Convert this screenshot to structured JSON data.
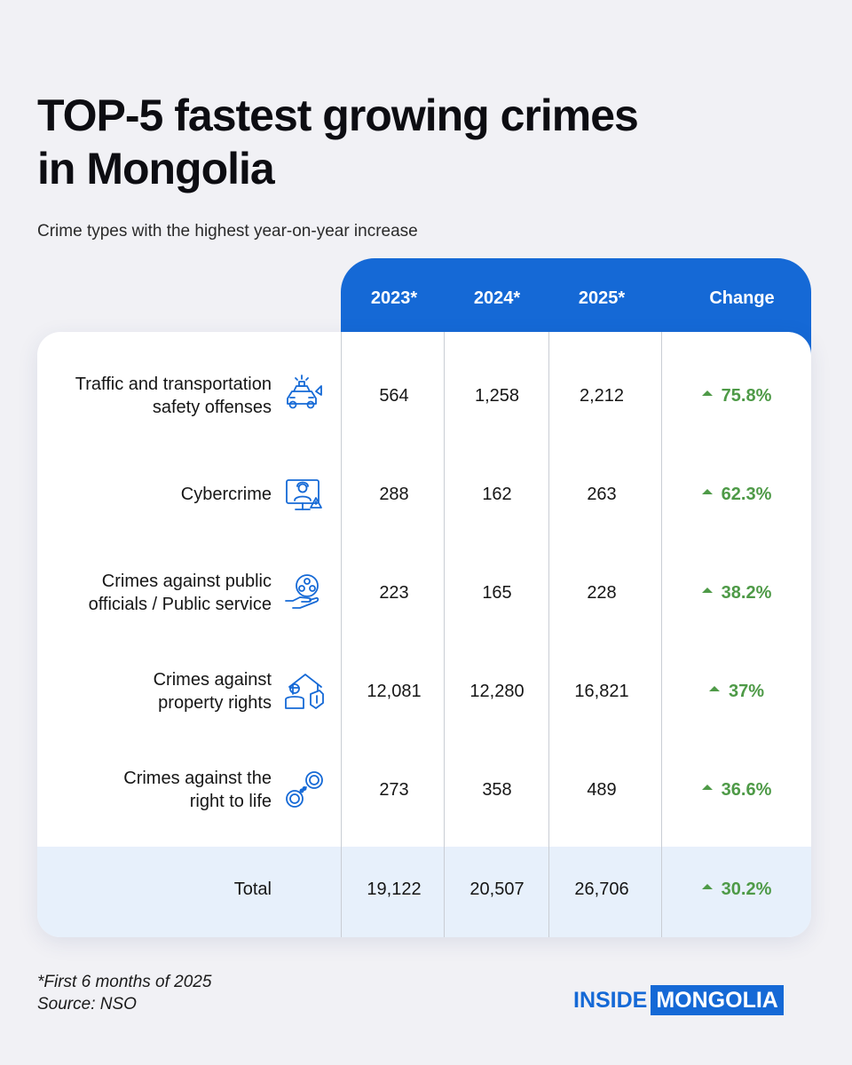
{
  "title_line1": "TOP-5 fastest growing crimes",
  "title_line2": "in Mongolia",
  "subtitle": "Crime types with the highest year-on-year increase",
  "chart_data": {
    "type": "table",
    "columns": [
      "2023*",
      "2024*",
      "2025*",
      "Change"
    ],
    "rows": [
      {
        "label": [
          "Traffic and transportation",
          "safety offenses"
        ],
        "icon": "car-police-icon",
        "values": [
          "564",
          "1,258",
          "2,212"
        ],
        "change": "75.8%"
      },
      {
        "label": [
          "Cybercrime"
        ],
        "icon": "hacker-monitor-icon",
        "values": [
          "288",
          "162",
          "263"
        ],
        "change": "62.3%"
      },
      {
        "label": [
          "Crimes against public",
          "officials / Public service"
        ],
        "icon": "hand-people-icon",
        "values": [
          "223",
          "165",
          "228"
        ],
        "change": "38.2%"
      },
      {
        "label": [
          "Crimes against",
          "property rights"
        ],
        "icon": "house-thief-icon",
        "values": [
          "12,081",
          "12,280",
          "16,821"
        ],
        "change": "37%"
      },
      {
        "label": [
          "Crimes against the",
          "right to life"
        ],
        "icon": "handcuffs-icon",
        "values": [
          "273",
          "358",
          "489"
        ],
        "change": "36.6%"
      }
    ],
    "total": {
      "label": "Total",
      "values": [
        "19,122",
        "20,507",
        "26,706"
      ],
      "change": "30.2%"
    },
    "change_color": "#4e9a47"
  },
  "footnote_line1": "*First 6 months of 2025",
  "footnote_line2": "Source: NSO",
  "logo": {
    "part1": "INSIDE",
    "part2": "MONGOLIA"
  },
  "colors": {
    "accent": "#1569d6",
    "total_band": "#e7f0fb",
    "background": "#f1f1f5"
  }
}
